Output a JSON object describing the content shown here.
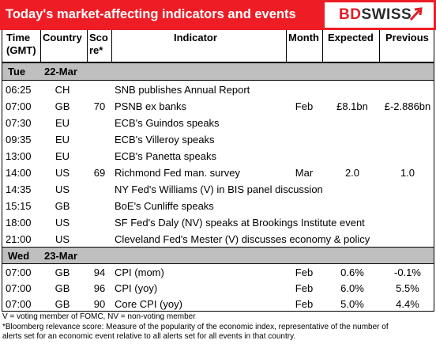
{
  "header": {
    "title": "Today's market-affecting indicators and events"
  },
  "logo": {
    "text_bd": "BD",
    "text_swiss": "SWISS"
  },
  "columns": {
    "time": [
      "Time",
      "(GMT)"
    ],
    "country": "Country",
    "score": [
      "Sco",
      "re*"
    ],
    "indicator": "Indicator",
    "month": "Month",
    "expected": "Expected",
    "previous": "Previous"
  },
  "days": [
    {
      "day": "Tue",
      "date": "22-Mar",
      "rows": [
        {
          "time": "06:25",
          "country": "CH",
          "score": "",
          "indicator": "SNB publishes Annual Report",
          "month": "",
          "expected": "",
          "previous": ""
        },
        {
          "time": "07:00",
          "country": "GB",
          "score": "70",
          "indicator": "PSNB ex banks",
          "month": "Feb",
          "expected": "£8.1bn",
          "previous": "£-2.886bn"
        },
        {
          "time": "07:30",
          "country": "EU",
          "score": "",
          "indicator": "ECB's Guindos speaks",
          "month": "",
          "expected": "",
          "previous": ""
        },
        {
          "time": "09:35",
          "country": "EU",
          "score": "",
          "indicator": "ECB's Villeroy speaks",
          "month": "",
          "expected": "",
          "previous": ""
        },
        {
          "time": "13:00",
          "country": "EU",
          "score": "",
          "indicator": "ECB's Panetta speaks",
          "month": "",
          "expected": "",
          "previous": ""
        },
        {
          "time": "14:00",
          "country": "US",
          "score": "69",
          "indicator": "Richmond Fed man. survey",
          "month": "Mar",
          "expected": "2.0",
          "previous": "1.0"
        },
        {
          "time": "14:35",
          "country": "US",
          "score": "",
          "indicator": "NY Fed's Williams (V) in BIS panel discussion",
          "month": "",
          "expected": "",
          "previous": ""
        },
        {
          "time": "15:15",
          "country": "GB",
          "score": "",
          "indicator": "BoE's Cunliffe speaks",
          "month": "",
          "expected": "",
          "previous": ""
        },
        {
          "time": "18:00",
          "country": "US",
          "score": "",
          "indicator": "SF Fed's Daly (NV) speaks at Brookings Institute event",
          "month": "",
          "expected": "",
          "previous": ""
        },
        {
          "time": "21:00",
          "country": "US",
          "score": "",
          "indicator": "Cleveland Fed's Mester (V) discusses economy & policy",
          "month": "",
          "expected": "",
          "previous": ""
        }
      ]
    },
    {
      "day": "Wed",
      "date": "23-Mar",
      "rows": [
        {
          "time": "07:00",
          "country": "GB",
          "score": "94",
          "indicator": "CPI (mom)",
          "month": "Feb",
          "expected": "0.6%",
          "previous": "-0.1%"
        },
        {
          "time": "07:00",
          "country": "GB",
          "score": "96",
          "indicator": "CPI (yoy)",
          "month": "Feb",
          "expected": "6.0%",
          "previous": "5.5%"
        },
        {
          "time": "07:00",
          "country": "GB",
          "score": "90",
          "indicator": "Core CPI (yoy)",
          "month": "Feb",
          "expected": "5.0%",
          "previous": "4.4%"
        }
      ]
    }
  ],
  "footnotes": {
    "line1": "V = voting member of FOMC, NV = non-voting member",
    "line2": "*Bloomberg relevance score:  Measure of the popularity of the economic index, representative of the number of",
    "line3": "alerts set for an economic event relative to all alerts set for all events in that country."
  },
  "colors": {
    "header_red": "#ee1c25",
    "day_band_grey": "#bfbfbf",
    "logo_red": "#e31d25",
    "logo_dark": "#2b2b2b"
  }
}
